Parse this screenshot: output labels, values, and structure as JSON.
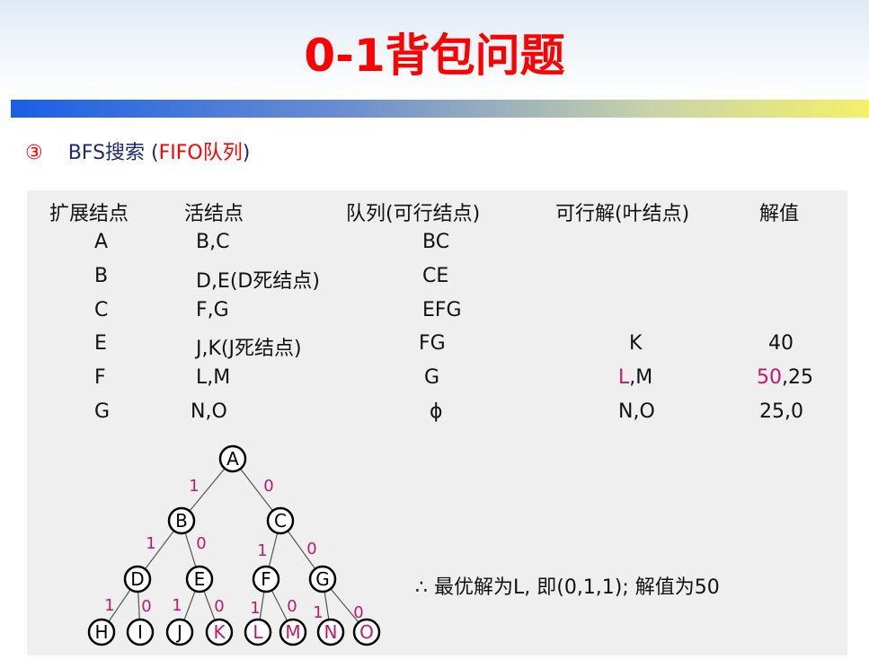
{
  "title": "0-1背包问题",
  "subtitle": {
    "marker": "③",
    "text": "BFS搜索 (",
    "red": "FIFO队列",
    ".end": ")",
    "end": ")"
  },
  "table": {
    "headers": [
      "扩展结点",
      "活结点",
      "队列(可行结点)",
      "可行解(叶结点)",
      "解值"
    ],
    "rows": [
      [
        "A",
        "B,C",
        "BC",
        "",
        ""
      ],
      [
        "B",
        "D,E(D死结点)",
        "CE",
        "",
        ""
      ],
      [
        "C",
        "F,G",
        "EFG",
        "",
        ""
      ],
      [
        "E",
        "J,K(J死结点)",
        "FG",
        "K",
        "40"
      ],
      [
        "F",
        "L,M",
        "G",
        "L,M",
        "50,25"
      ],
      [
        "G",
        "N,O",
        "ϕ",
        "N,O",
        "25,0"
      ]
    ],
    "row5_leaf": {
      "highlight": "L",
      "rest": ",M"
    },
    "row5_value": {
      "highlight": "50",
      "rest": ",25"
    }
  },
  "conclusion": "∴  最优解为L, 即(0,1,1); 解值为50",
  "tree": {
    "nodes": [
      {
        "id": "A",
        "highlight": false
      },
      {
        "id": "B",
        "highlight": false
      },
      {
        "id": "C",
        "highlight": false
      },
      {
        "id": "D",
        "highlight": false
      },
      {
        "id": "E",
        "highlight": false
      },
      {
        "id": "F",
        "highlight": false
      },
      {
        "id": "G",
        "highlight": false
      },
      {
        "id": "H",
        "highlight": false
      },
      {
        "id": "I",
        "highlight": false
      },
      {
        "id": "J",
        "highlight": false
      },
      {
        "id": "K",
        "highlight": true
      },
      {
        "id": "L",
        "highlight": true
      },
      {
        "id": "M",
        "highlight": true
      },
      {
        "id": "N",
        "highlight": true
      },
      {
        "id": "O",
        "highlight": true
      }
    ],
    "edges": [
      [
        "A",
        "B",
        "1"
      ],
      [
        "A",
        "C",
        "0"
      ],
      [
        "B",
        "D",
        "1"
      ],
      [
        "B",
        "E",
        "0"
      ],
      [
        "C",
        "F",
        "1"
      ],
      [
        "C",
        "G",
        "0"
      ],
      [
        "D",
        "H",
        "1"
      ],
      [
        "D",
        "I",
        "0"
      ],
      [
        "E",
        "J",
        "1"
      ],
      [
        "E",
        "K",
        "0"
      ],
      [
        "F",
        "L",
        "1"
      ],
      [
        "F",
        "M",
        "0"
      ],
      [
        "G",
        "N",
        "1"
      ],
      [
        "G",
        "O",
        "0"
      ]
    ]
  },
  "colors": {
    "title": "#ff0000",
    "highlight": "#c0186a",
    "subtitle": "#1c2a6e"
  }
}
